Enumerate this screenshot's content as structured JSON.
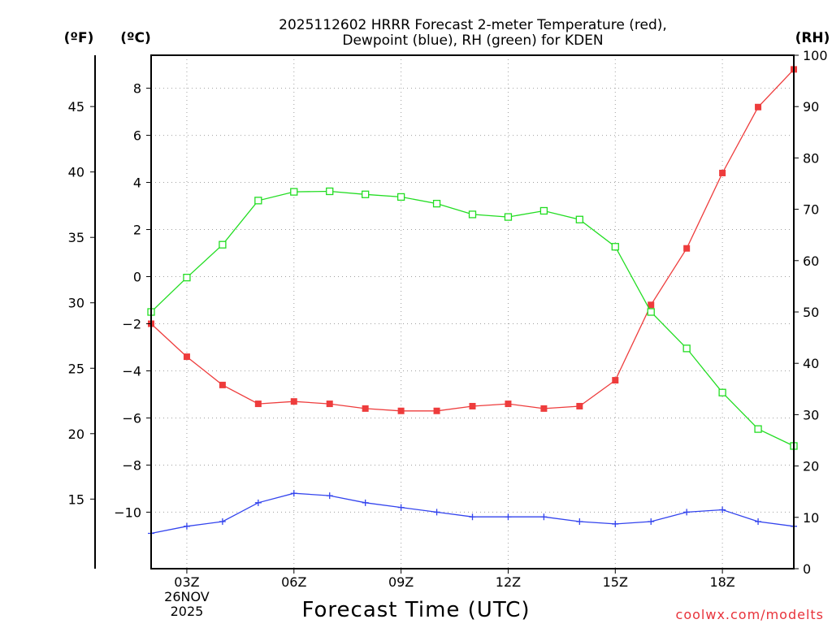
{
  "chart_data": {
    "type": "line",
    "title_line1": "2025112602 HRRR Forecast 2-meter Temperature (red),",
    "title_line2": "Dewpoint (blue), RH (green) for KDEN",
    "xlabel": "Forecast Time (UTC)",
    "credit": "coolwx.com/modelts",
    "units": {
      "fahrenheit": "(ºF)",
      "celsius": "(ºC)",
      "rh": "(RH)"
    },
    "x": [
      2,
      3,
      4,
      5,
      6,
      7,
      8,
      9,
      10,
      11,
      12,
      13,
      14,
      15,
      16,
      17,
      18,
      19,
      20
    ],
    "xlim": [
      2,
      20
    ],
    "x_ticks": [
      {
        "x": 3,
        "lines": [
          "03Z",
          "26NOV",
          "2025"
        ]
      },
      {
        "x": 6,
        "lines": [
          "06Z"
        ]
      },
      {
        "x": 9,
        "lines": [
          "09Z"
        ]
      },
      {
        "x": 12,
        "lines": [
          "12Z"
        ]
      },
      {
        "x": 15,
        "lines": [
          "15Z"
        ]
      },
      {
        "x": 18,
        "lines": [
          "18Z"
        ]
      }
    ],
    "celsius_axis": {
      "min": -12.4,
      "max": 9.4,
      "ticks": [
        8,
        6,
        4,
        2,
        0,
        -2,
        -4,
        -6,
        -8,
        -10
      ]
    },
    "fahrenheit_ticks": [
      45,
      40,
      35,
      30,
      25,
      20,
      15
    ],
    "rh_axis": {
      "min": 0,
      "max": 100,
      "ticks": [
        100,
        90,
        80,
        70,
        60,
        50,
        40,
        30,
        20,
        10,
        0
      ]
    },
    "series": [
      {
        "name": "Temperature",
        "axis": "celsius",
        "color": "#ee3c3c",
        "marker": "filled-square",
        "values": [
          -2.0,
          -3.4,
          -4.6,
          -5.4,
          -5.3,
          -5.4,
          -5.6,
          -5.7,
          -5.7,
          -5.5,
          -5.4,
          -5.6,
          -5.5,
          -4.4,
          -1.2,
          1.2,
          4.4,
          7.2,
          8.8
        ]
      },
      {
        "name": "Dewpoint",
        "axis": "celsius",
        "color": "#3344ee",
        "marker": "plus",
        "values": [
          -10.9,
          -10.6,
          -10.4,
          -9.6,
          -9.2,
          -9.3,
          -9.6,
          -9.8,
          -10.0,
          -10.2,
          -10.2,
          -10.2,
          -10.4,
          -10.5,
          -10.4,
          -10.0,
          -9.9,
          -10.4,
          -10.6
        ]
      },
      {
        "name": "Relative Humidity",
        "axis": "rh",
        "color": "#22dd22",
        "marker": "open-square",
        "values": [
          50.0,
          56.7,
          63.1,
          71.7,
          73.4,
          73.5,
          72.9,
          72.4,
          71.1,
          69.0,
          68.5,
          69.7,
          68.0,
          62.7,
          50.0,
          42.9,
          34.3,
          27.2,
          23.9
        ]
      }
    ]
  }
}
